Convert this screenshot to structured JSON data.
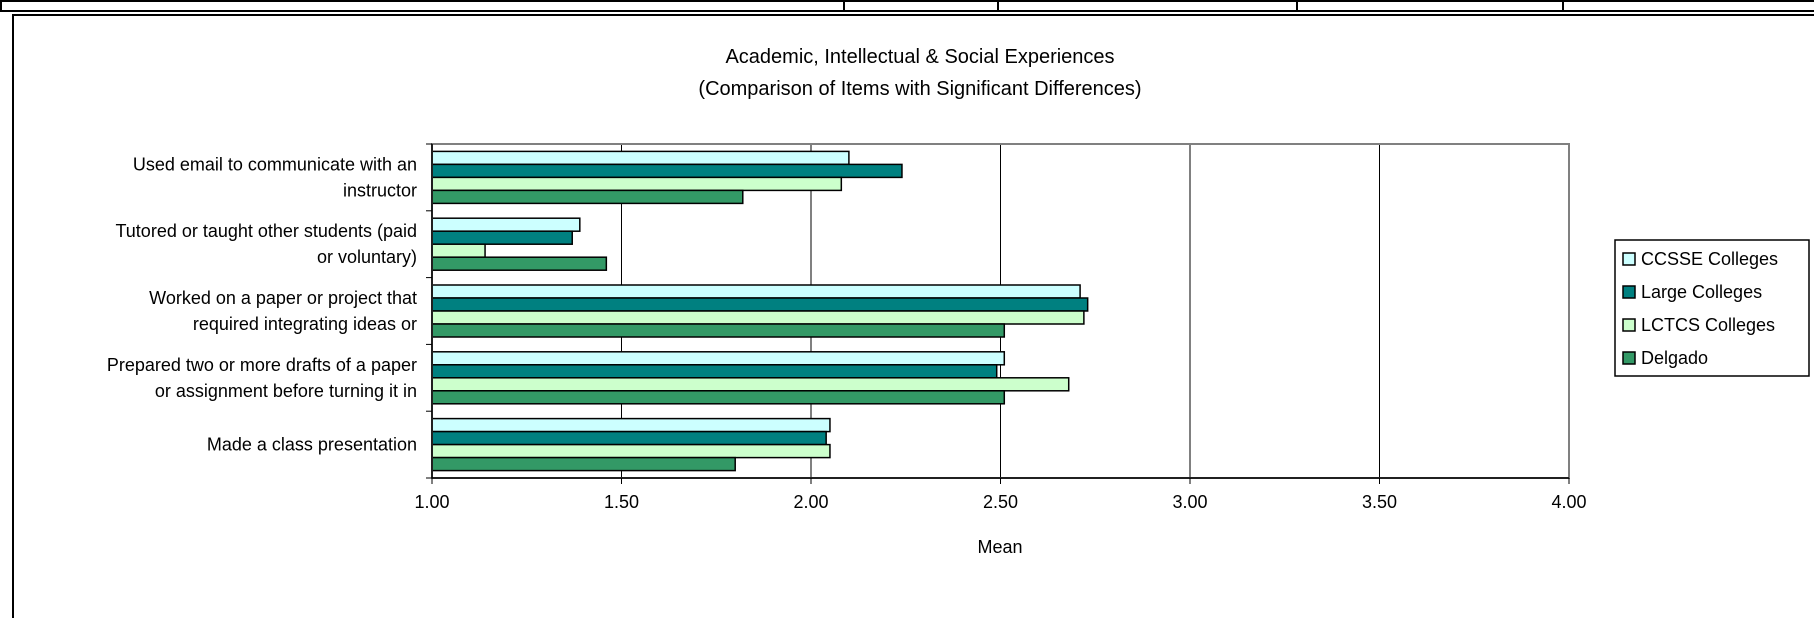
{
  "chart_data": {
    "type": "bar",
    "orientation": "horizontal",
    "title": "Academic, Intellectual & Social Experiences",
    "subtitle": "(Comparison of Items with Significant Differences)",
    "xlabel": "Mean",
    "ylabel": "",
    "xlim": [
      1.0,
      4.0
    ],
    "x_ticks": [
      "1.00",
      "1.50",
      "2.00",
      "2.50",
      "3.00",
      "3.50",
      "4.00"
    ],
    "x_tick_values": [
      1.0,
      1.5,
      2.0,
      2.5,
      3.0,
      3.5,
      4.0
    ],
    "grid": true,
    "legend_position": "right",
    "categories": [
      [
        "Used email to communicate with an",
        "instructor"
      ],
      [
        "Tutored or taught other students (paid",
        "or voluntary)"
      ],
      [
        "Worked on a paper or project that",
        "required integrating ideas or"
      ],
      [
        "Prepared two or more drafts of a paper",
        "or assignment before turning it in"
      ],
      [
        "Made a class presentation"
      ]
    ],
    "series": [
      {
        "name": "CCSSE Colleges",
        "color": "#ccffff",
        "values": [
          2.1,
          1.39,
          2.71,
          2.51,
          2.05
        ]
      },
      {
        "name": "Large Colleges",
        "color": "#008080",
        "values": [
          2.24,
          1.37,
          2.73,
          2.49,
          2.04
        ]
      },
      {
        "name": "LCTCS Colleges",
        "color": "#ccffcc",
        "values": [
          2.08,
          1.14,
          2.72,
          2.68,
          2.05
        ]
      },
      {
        "name": "Delgado",
        "color": "#339966",
        "values": [
          1.82,
          1.46,
          2.51,
          2.51,
          1.8
        ]
      }
    ]
  }
}
